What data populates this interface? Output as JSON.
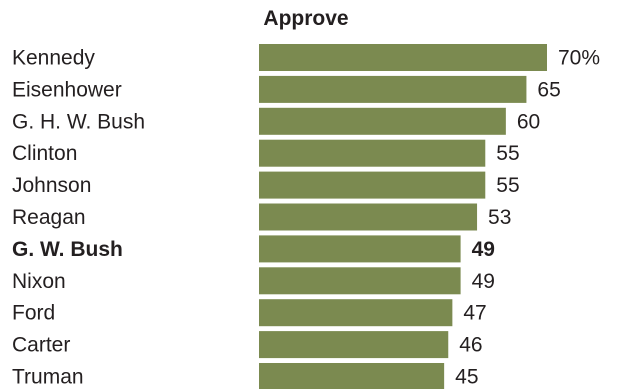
{
  "chart_data": {
    "type": "bar",
    "orientation": "horizontal",
    "header": "Approve",
    "categories": [
      "Kennedy",
      "Eisenhower",
      "G. H. W. Bush",
      "Clinton",
      "Johnson",
      "Reagan",
      "G. W. Bush",
      "Nixon",
      "Ford",
      "Carter",
      "Truman"
    ],
    "values": [
      70,
      65,
      60,
      55,
      55,
      53,
      49,
      49,
      47,
      46,
      45
    ],
    "value_labels": [
      "70%",
      "65",
      "60",
      "55",
      "55",
      "53",
      "49",
      "49",
      "47",
      "46",
      "45"
    ],
    "highlighted_category": "G. W. Bush",
    "xlim": [
      0,
      70
    ],
    "bar_color": "#7b8a50",
    "text_color": "#231f20",
    "grid": false,
    "legend": "none"
  }
}
